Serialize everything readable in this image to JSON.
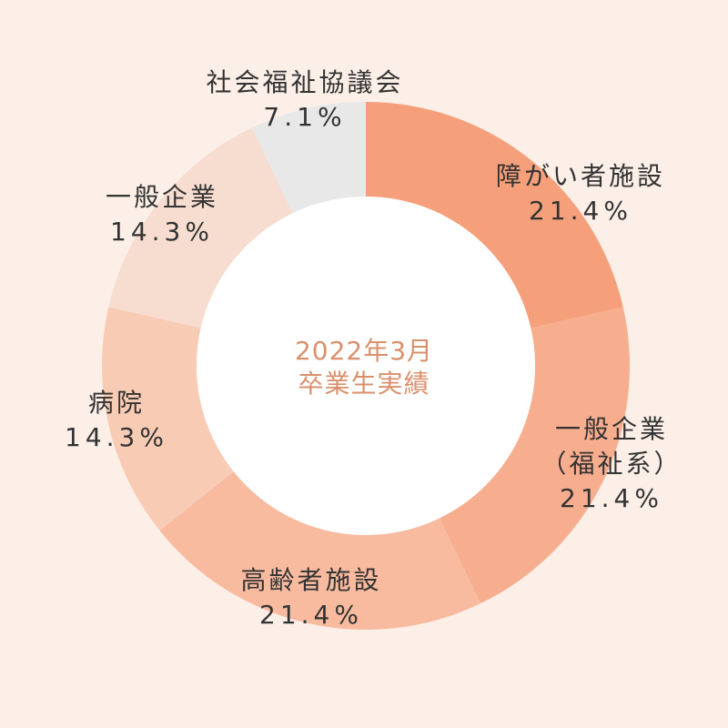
{
  "chart_data": {
    "type": "pie",
    "center_label": [
      "2022年3月",
      "卒業生実績"
    ],
    "slices": [
      {
        "label": [
          "障がい者施設"
        ],
        "value": 21.4,
        "value_text": "21.4%",
        "color": "#f6a07b"
      },
      {
        "label": [
          "一般企業",
          "（福祉系）"
        ],
        "value": 21.4,
        "value_text": "21.4%",
        "color": "#f6ae8e"
      },
      {
        "label": [
          "高齢者施設"
        ],
        "value": 21.4,
        "value_text": "21.4%",
        "color": "#f8bb9f"
      },
      {
        "label": [
          "病院"
        ],
        "value": 14.3,
        "value_text": "14.3%",
        "color": "#f8cbb5"
      },
      {
        "label": [
          "一般企業"
        ],
        "value": 14.3,
        "value_text": "14.3%",
        "color": "#f7ddd0"
      },
      {
        "label": [
          "社会福祉協議会"
        ],
        "value": 7.1,
        "value_text": "7.1%",
        "color": "#e8e8e8"
      }
    ]
  }
}
